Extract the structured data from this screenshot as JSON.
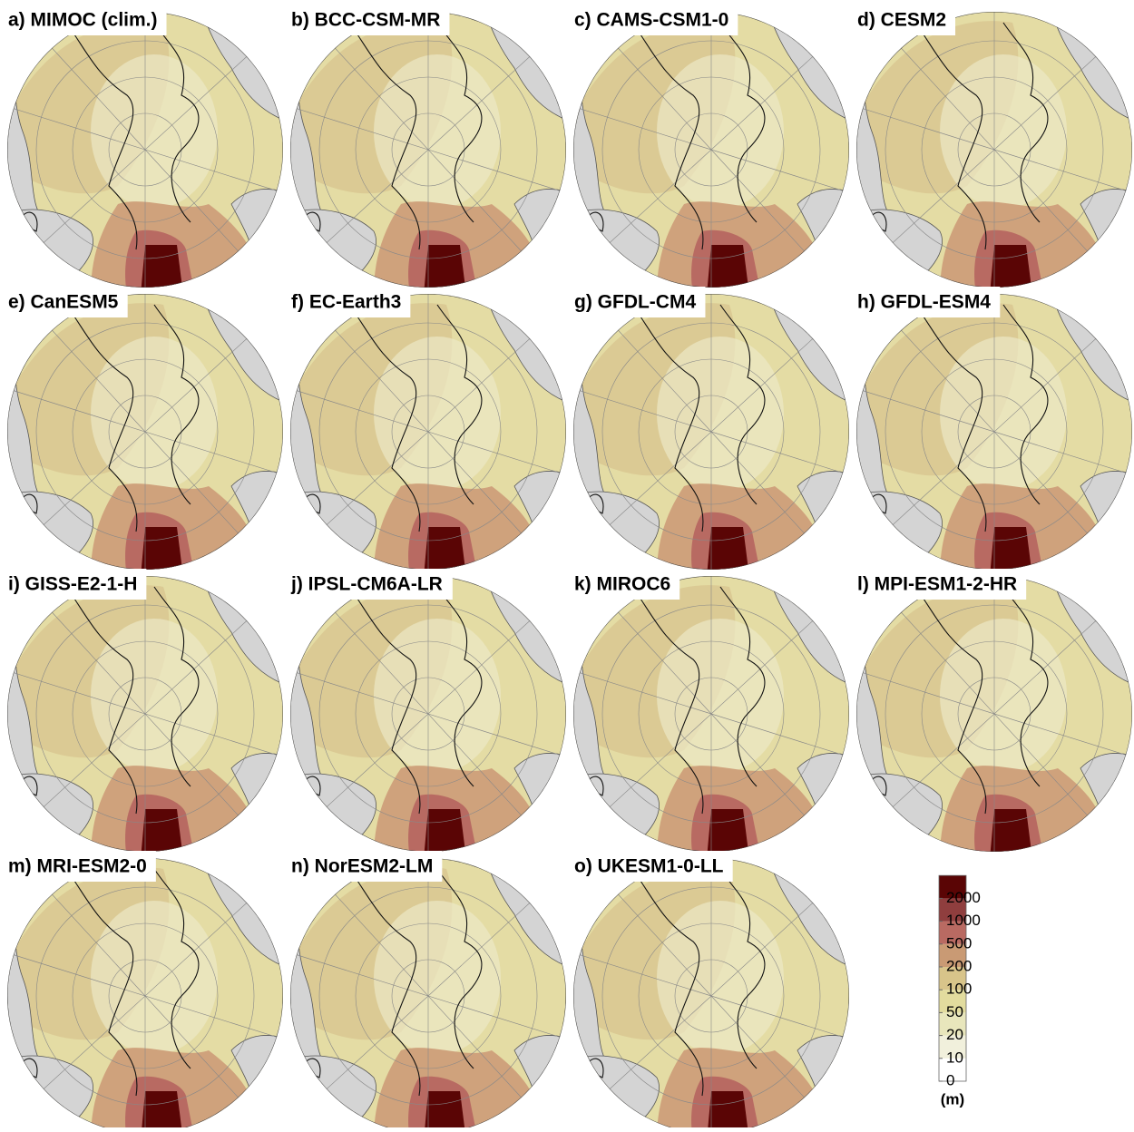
{
  "panels": [
    {
      "label": "a) MIMOC (clim.)"
    },
    {
      "label": "b) BCC-CSM-MR"
    },
    {
      "label": "c) CAMS-CSM1-0"
    },
    {
      "label": "d) CESM2"
    },
    {
      "label": "e) CanESM5"
    },
    {
      "label": "f) EC-Earth3"
    },
    {
      "label": "g) GFDL-CM4"
    },
    {
      "label": "h) GFDL-ESM4"
    },
    {
      "label": "i) GISS-E2-1-H"
    },
    {
      "label": "j) IPSL-CM6A-LR"
    },
    {
      "label": "k) MIROC6"
    },
    {
      "label": "l) MPI-ESM1-2-HR"
    },
    {
      "label": "m) MRI-ESM2-0"
    },
    {
      "label": "n) NorESM2-LM"
    },
    {
      "label": "o) UKESM1-0-LL"
    }
  ],
  "colorbar": {
    "ticks": [
      0,
      10,
      20,
      50,
      100,
      200,
      500,
      1000,
      2000
    ],
    "colors": [
      "#ffffff",
      "#f1f0dc",
      "#e8e6bc",
      "#e2dc9e",
      "#d8c48a",
      "#c99a74",
      "#b96a62",
      "#8f3e3e",
      "#5a0505"
    ],
    "unit": "(m)"
  }
}
